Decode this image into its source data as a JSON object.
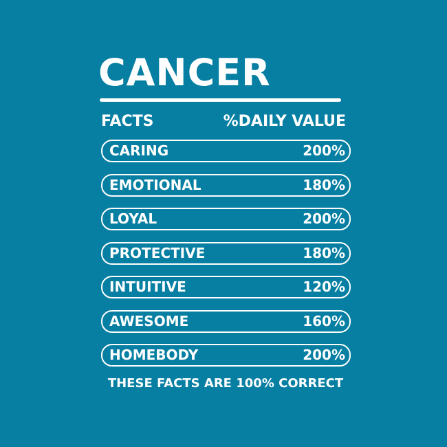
{
  "title": "CANCER",
  "header": {
    "left": "FACTS",
    "right": "%DAILY VALUE"
  },
  "facts": [
    {
      "label": "CARING",
      "value": "200%"
    },
    {
      "label": "EMOTIONAL",
      "value": "180%"
    },
    {
      "label": "LOYAL",
      "value": "200%"
    },
    {
      "label": "PROTECTIVE",
      "value": "180%"
    },
    {
      "label": "INTUITIVE",
      "value": "120%"
    },
    {
      "label": "AWESOME",
      "value": "160%"
    },
    {
      "label": "HOMEBODY",
      "value": "200%"
    }
  ],
  "footer": "THESE FACTS ARE 100% CORRECT",
  "colors": {
    "background": "#067fa2",
    "text": "#ffffff"
  }
}
